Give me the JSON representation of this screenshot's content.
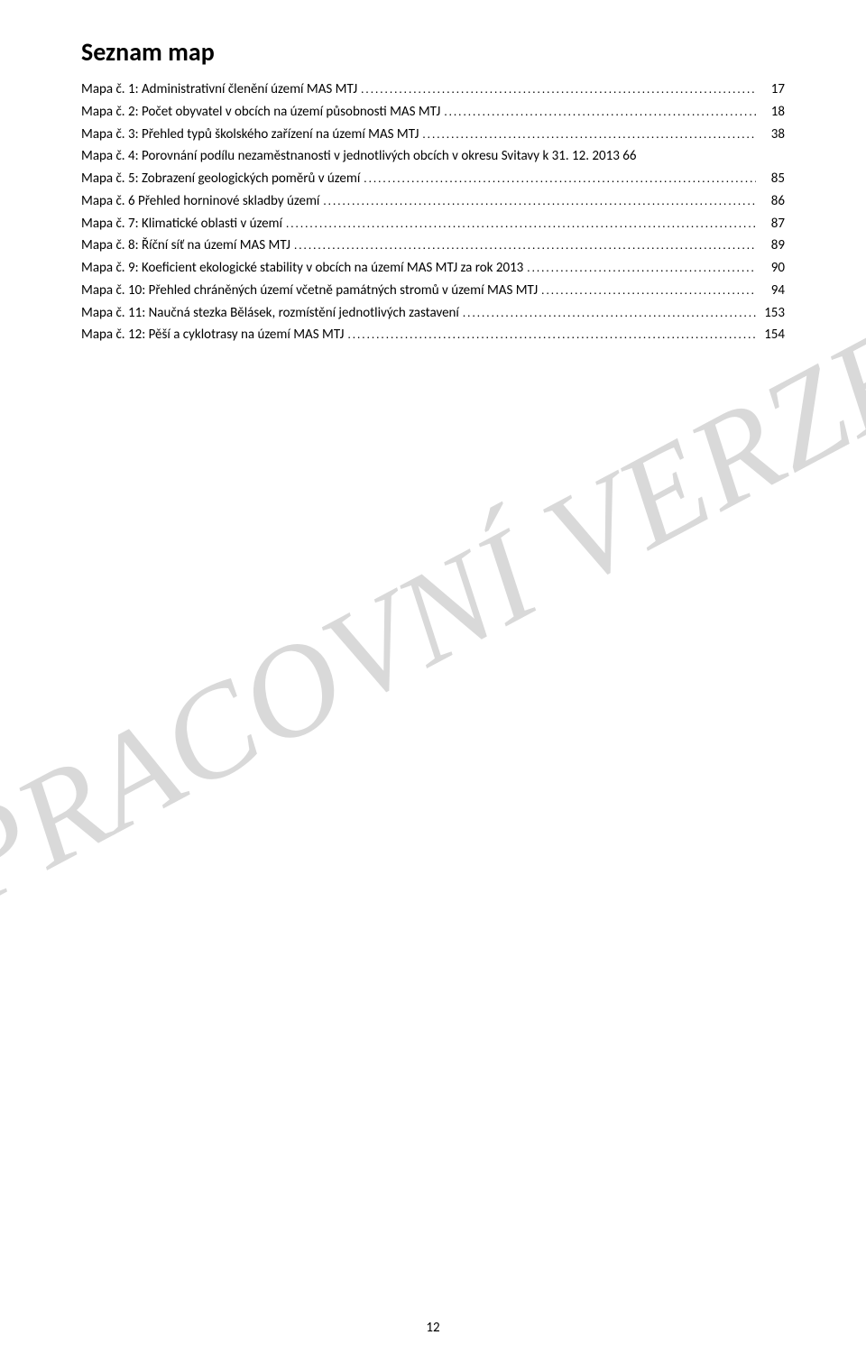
{
  "title": "Seznam map",
  "watermark_text": "PRACOVNÍ VERZE",
  "page_number": "12",
  "colors": {
    "text": "#000000",
    "background": "#ffffff",
    "watermark": "#d9d9d9"
  },
  "typography": {
    "title_fontsize": 28,
    "body_fontsize": 15,
    "watermark_fontsize": 145,
    "font_family_body": "Calibri",
    "font_family_watermark": "Georgia"
  },
  "toc_entries": [
    {
      "label": "Mapa č. 1: Administrativní členění území MAS MTJ",
      "page": "17"
    },
    {
      "label": "Mapa č. 2: Počet obyvatel v obcích na území působnosti MAS MTJ",
      "page": "18"
    },
    {
      "label": "Mapa č. 3: Přehled typů školského zařízení  na území MAS MTJ",
      "page": "38"
    },
    {
      "label": "Mapa č. 4: Porovnání podílu nezaměstnanosti v jednotlivých obcích v okresu Svitavy k 31. 12. 2013",
      "page": "66",
      "no_dots": true
    },
    {
      "label": "Mapa č. 5: Zobrazení geologických poměrů v území",
      "page": "85"
    },
    {
      "label": "Mapa č. 6 Přehled horninové skladby území",
      "page": "86"
    },
    {
      "label": "Mapa č. 7: Klimatické oblasti v území",
      "page": "87"
    },
    {
      "label": "Mapa č. 8: Říční síť na území MAS MTJ",
      "page": "89"
    },
    {
      "label": "Mapa č. 9: Koeficient ekologické stability v obcích na území MAS MTJ za rok 2013",
      "page": "90"
    },
    {
      "label": "Mapa č. 10: Přehled chráněných území včetně památných stromů v území MAS MTJ",
      "page": "94"
    },
    {
      "label": "Mapa č. 11: Naučná stezka Bělásek, rozmístění jednotlivých zastavení",
      "page": "153"
    },
    {
      "label": "Mapa č. 12: Pěší a cyklotrasy na území MAS MTJ",
      "page": "154"
    }
  ]
}
